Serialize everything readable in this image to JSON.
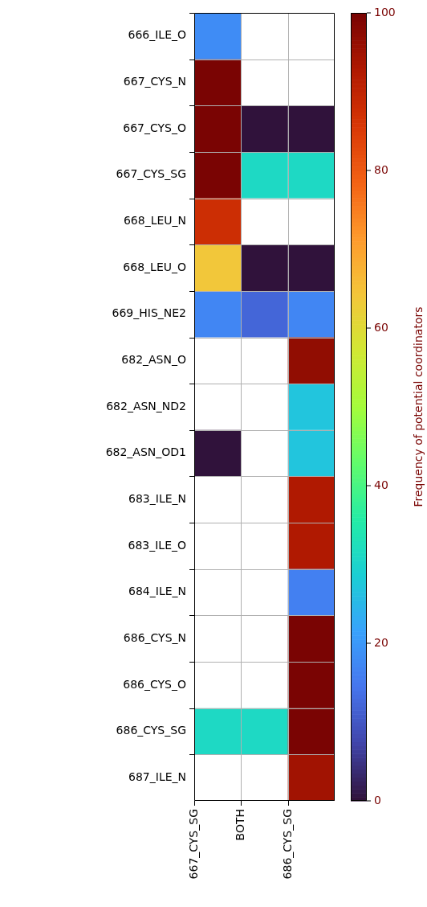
{
  "chart_data": {
    "type": "heatmap",
    "categories": [
      "667_CYS_SG",
      "BOTH",
      "686_CYS_SG"
    ],
    "y_categories": [
      "666_ILE_O",
      "667_CYS_N",
      "667_CYS_O",
      "667_CYS_SG",
      "668_LEU_N",
      "668_LEU_O",
      "669_HIS_NE2",
      "682_ASN_O",
      "682_ASN_ND2",
      "682_ASN_OD1",
      "683_ILE_N",
      "683_ILE_O",
      "684_ILE_N",
      "686_CYS_N",
      "686_CYS_O",
      "686_CYS_SG",
      "687_ILE_N"
    ],
    "cells": [
      [
        18,
        null,
        null
      ],
      [
        100,
        null,
        null
      ],
      [
        100,
        0,
        0
      ],
      [
        100,
        31,
        31
      ],
      [
        88,
        null,
        null
      ],
      [
        64,
        0,
        0
      ],
      [
        17,
        12,
        17
      ],
      [
        null,
        null,
        97
      ],
      [
        null,
        null,
        27
      ],
      [
        0,
        null,
        27
      ],
      [
        null,
        null,
        93
      ],
      [
        null,
        null,
        93
      ],
      [
        null,
        null,
        16
      ],
      [
        null,
        null,
        100
      ],
      [
        null,
        null,
        100
      ],
      [
        31,
        31,
        100
      ],
      [
        null,
        null,
        95
      ]
    ],
    "clim": [
      0,
      100
    ],
    "cticks": [
      0,
      20,
      40,
      60,
      80,
      100
    ],
    "clabel": "Frequency of potential coordinators",
    "grid": true
  }
}
